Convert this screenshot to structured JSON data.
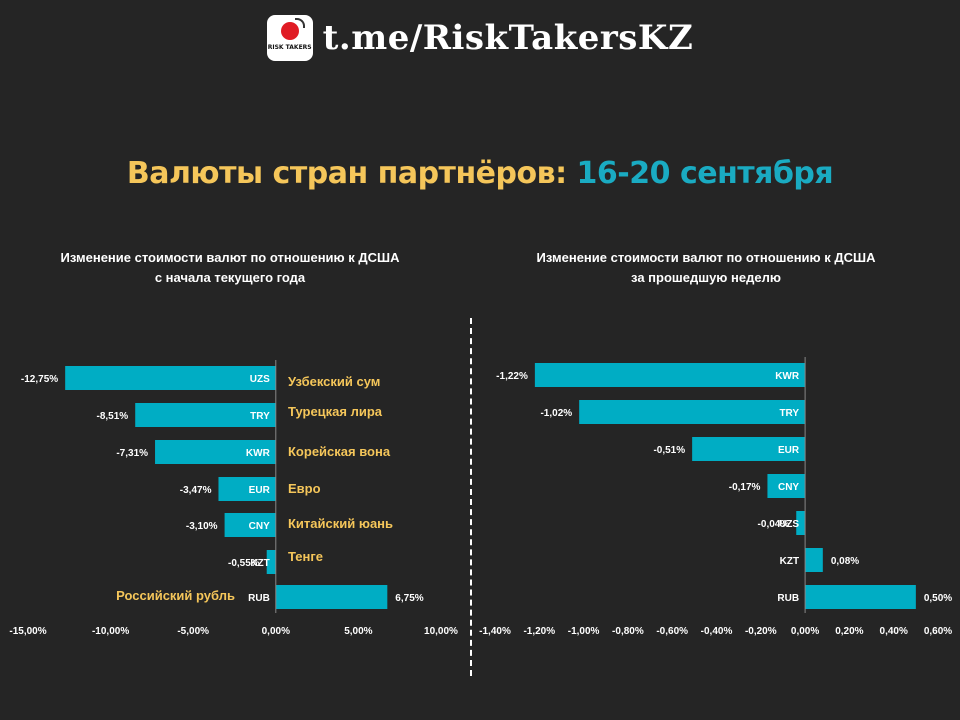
{
  "header": {
    "logo_text": "RISK TAKERS",
    "site": "t.me/RiskTakersKZ"
  },
  "title": {
    "part1": "Валюты стран партнёров:",
    "part2": "16-20 сентября"
  },
  "colors": {
    "background": "#252525",
    "bar": "#00adc4",
    "accent_yellow": "#f5c65a",
    "accent_teal": "#1aabc2"
  },
  "chart_data": [
    {
      "type": "bar",
      "orientation": "horizontal",
      "title": "Изменение стоимости валют по отношению к ДСША с начала текущего года",
      "title_line1": "Изменение стоимости валют по отношению к ДСША",
      "title_line2": "с начала текущего года",
      "categories": [
        "UZS",
        "TRY",
        "KWR",
        "EUR",
        "CNY",
        "KZT",
        "RUB"
      ],
      "names": [
        "Узбекский сум",
        "Турецкая лира",
        "Корейская вона",
        "Евро",
        "Китайский юань",
        "Тенге",
        "Российский рубль"
      ],
      "values": [
        -12.75,
        -8.51,
        -7.31,
        -3.47,
        -3.1,
        -0.55,
        6.75
      ],
      "value_labels": [
        "-12,75%",
        "-8,51%",
        "-7,31%",
        "-3,47%",
        "-3,10%",
        "-0,55%",
        "6,75%"
      ],
      "xlim": [
        -15,
        10
      ],
      "ticks": [
        -15,
        -10,
        -5,
        0,
        5,
        10
      ],
      "tick_labels": [
        "-15,00%",
        "-10,00%",
        "-5,00%",
        "0,00%",
        "5,00%",
        "10,00%"
      ],
      "grid": false
    },
    {
      "type": "bar",
      "orientation": "horizontal",
      "title": "Изменение стоимости валют по отношению к ДСША за прошедшую неделю",
      "title_line1": "Изменение стоимости валют по отношению к ДСША",
      "title_line2": "за прошедшую неделю",
      "categories": [
        "KWR",
        "TRY",
        "EUR",
        "CNY",
        "UZS",
        "KZT",
        "RUB"
      ],
      "values": [
        -1.22,
        -1.02,
        -0.51,
        -0.17,
        -0.04,
        0.08,
        0.5
      ],
      "value_labels": [
        "-1,22%",
        "-1,02%",
        "-0,51%",
        "-0,17%",
        "-0,04%",
        "0,08%",
        "0,50%"
      ],
      "xlim": [
        -1.4,
        0.6
      ],
      "ticks": [
        -1.4,
        -1.2,
        -1.0,
        -0.8,
        -0.6,
        -0.4,
        -0.2,
        0,
        0.2,
        0.4,
        0.6
      ],
      "tick_labels": [
        "-1,40%",
        "-1,20%",
        "-1,00%",
        "-0,80%",
        "-0,60%",
        "-0,40%",
        "-0,20%",
        "0,00%",
        "0,20%",
        "0,40%",
        "0,60%"
      ],
      "grid": false
    }
  ]
}
